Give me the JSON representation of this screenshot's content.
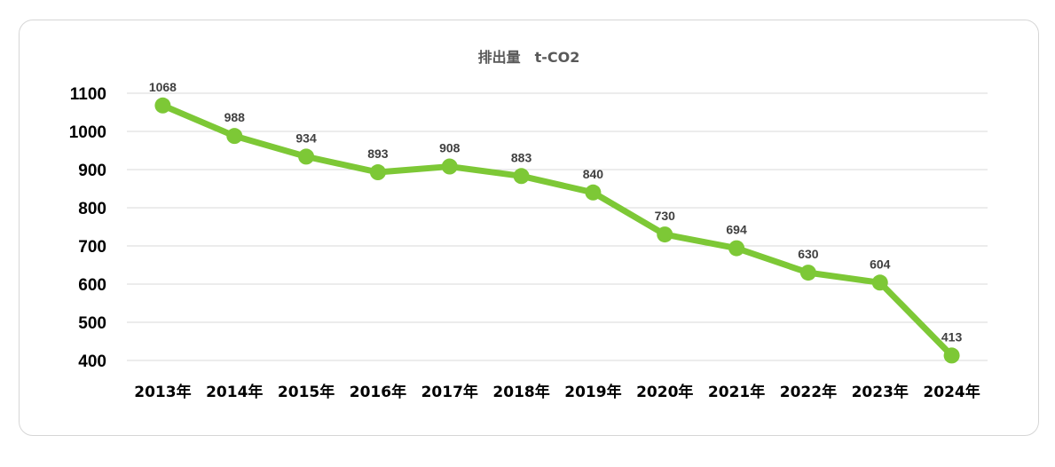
{
  "chart_data": {
    "type": "line",
    "title": "排出量　t-CO2",
    "xlabel": "",
    "ylabel": "",
    "categories": [
      "2013年",
      "2014年",
      "2015年",
      "2016年",
      "2017年",
      "2018年",
      "2019年",
      "2020年",
      "2021年",
      "2022年",
      "2023年",
      "2024年"
    ],
    "series": [
      {
        "values": [
          1068,
          988,
          934,
          893,
          908,
          883,
          840,
          730,
          694,
          630,
          604,
          413
        ],
        "color": "#7DC836"
      }
    ],
    "ylim": [
      400,
      1100
    ],
    "yticks": [
      400,
      500,
      600,
      700,
      800,
      900,
      1000,
      1100
    ],
    "grid": true,
    "legend": "none",
    "data_labels": true
  }
}
